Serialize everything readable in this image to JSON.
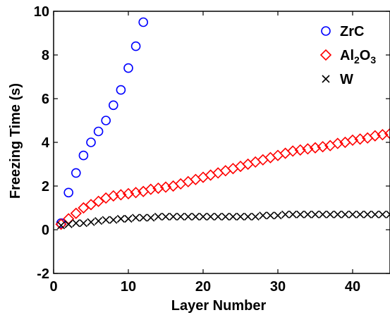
{
  "chart_data": {
    "type": "scatter",
    "title": "",
    "xlabel": "Layer Number",
    "ylabel": "Freezing Time (s)",
    "xlim": [
      0,
      45
    ],
    "ylim": [
      -2,
      10
    ],
    "xticks": [
      "0",
      "10",
      "20",
      "30",
      "40"
    ],
    "yticks": [
      "-2",
      "0",
      "2",
      "4",
      "6",
      "8",
      "10"
    ],
    "grid": false,
    "legend_position": "top-right",
    "series": [
      {
        "name": "ZrC",
        "marker": "circle",
        "color": "#0000ff",
        "x": [
          1,
          2,
          3,
          4,
          5,
          6,
          7,
          8,
          9,
          10,
          11,
          12
        ],
        "y": [
          0.3,
          1.7,
          2.6,
          3.4,
          4.0,
          4.5,
          5.0,
          5.7,
          6.4,
          7.4,
          8.4,
          9.5
        ]
      },
      {
        "name": "Al2O3",
        "legend_parts": [
          [
            "Al",
            ""
          ],
          [
            "2",
            "sub"
          ],
          [
            "O",
            ""
          ],
          [
            "3",
            "sub"
          ]
        ],
        "marker": "diamond",
        "color": "#ff0000",
        "x": [
          1,
          2,
          3,
          4,
          5,
          6,
          7,
          8,
          9,
          10,
          11,
          12,
          13,
          14,
          15,
          16,
          17,
          18,
          19,
          20,
          21,
          22,
          23,
          24,
          25,
          26,
          27,
          28,
          29,
          30,
          31,
          32,
          33,
          34,
          35,
          36,
          37,
          38,
          39,
          40,
          41,
          42,
          43,
          44,
          45
        ],
        "y": [
          0.25,
          0.5,
          0.75,
          1.0,
          1.15,
          1.3,
          1.45,
          1.55,
          1.6,
          1.65,
          1.7,
          1.75,
          1.85,
          1.9,
          1.95,
          2.0,
          2.1,
          2.2,
          2.3,
          2.4,
          2.5,
          2.6,
          2.7,
          2.8,
          2.9,
          3.0,
          3.1,
          3.2,
          3.3,
          3.4,
          3.5,
          3.6,
          3.65,
          3.7,
          3.75,
          3.8,
          3.85,
          3.95,
          4.0,
          4.1,
          4.15,
          4.2,
          4.3,
          4.35,
          4.4
        ]
      },
      {
        "name": "W",
        "marker": "x",
        "color": "#000000",
        "x": [
          1,
          2,
          3,
          4,
          5,
          6,
          7,
          8,
          9,
          10,
          11,
          12,
          13,
          14,
          15,
          16,
          17,
          18,
          19,
          20,
          21,
          22,
          23,
          24,
          25,
          26,
          27,
          28,
          29,
          30,
          31,
          32,
          33,
          34,
          35,
          36,
          37,
          38,
          39,
          40,
          41,
          42,
          43,
          44,
          45
        ],
        "y": [
          0.2,
          0.25,
          0.3,
          0.3,
          0.35,
          0.4,
          0.45,
          0.45,
          0.5,
          0.5,
          0.55,
          0.55,
          0.55,
          0.6,
          0.6,
          0.6,
          0.6,
          0.6,
          0.6,
          0.6,
          0.6,
          0.6,
          0.6,
          0.6,
          0.6,
          0.6,
          0.6,
          0.65,
          0.65,
          0.65,
          0.7,
          0.7,
          0.7,
          0.7,
          0.7,
          0.7,
          0.7,
          0.7,
          0.7,
          0.7,
          0.7,
          0.7,
          0.7,
          0.7,
          0.7
        ]
      }
    ]
  }
}
